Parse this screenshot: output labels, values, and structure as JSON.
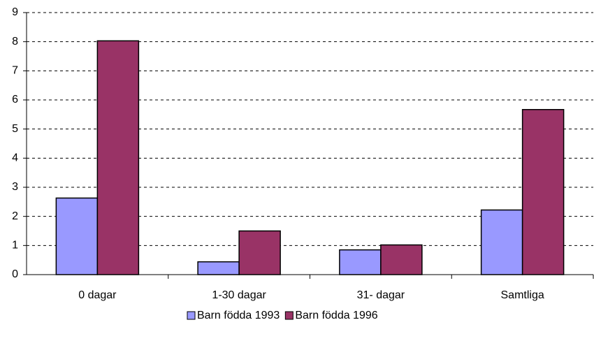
{
  "chart_data": {
    "type": "bar",
    "categories": [
      "0 dagar",
      "1-30 dagar",
      "31- dagar",
      "Samtliga"
    ],
    "series": [
      {
        "name": "Barn födda 1993",
        "color": "#9999ff",
        "values": [
          2.63,
          0.44,
          0.85,
          2.22
        ]
      },
      {
        "name": "Barn födda 1996",
        "color": "#993366",
        "values": [
          8.03,
          1.5,
          1.02,
          5.67
        ]
      }
    ],
    "ylim": [
      0,
      9
    ],
    "yticks": [
      0,
      1,
      2,
      3,
      4,
      5,
      6,
      7,
      8,
      9
    ],
    "grid": true,
    "legend": "bottom"
  }
}
